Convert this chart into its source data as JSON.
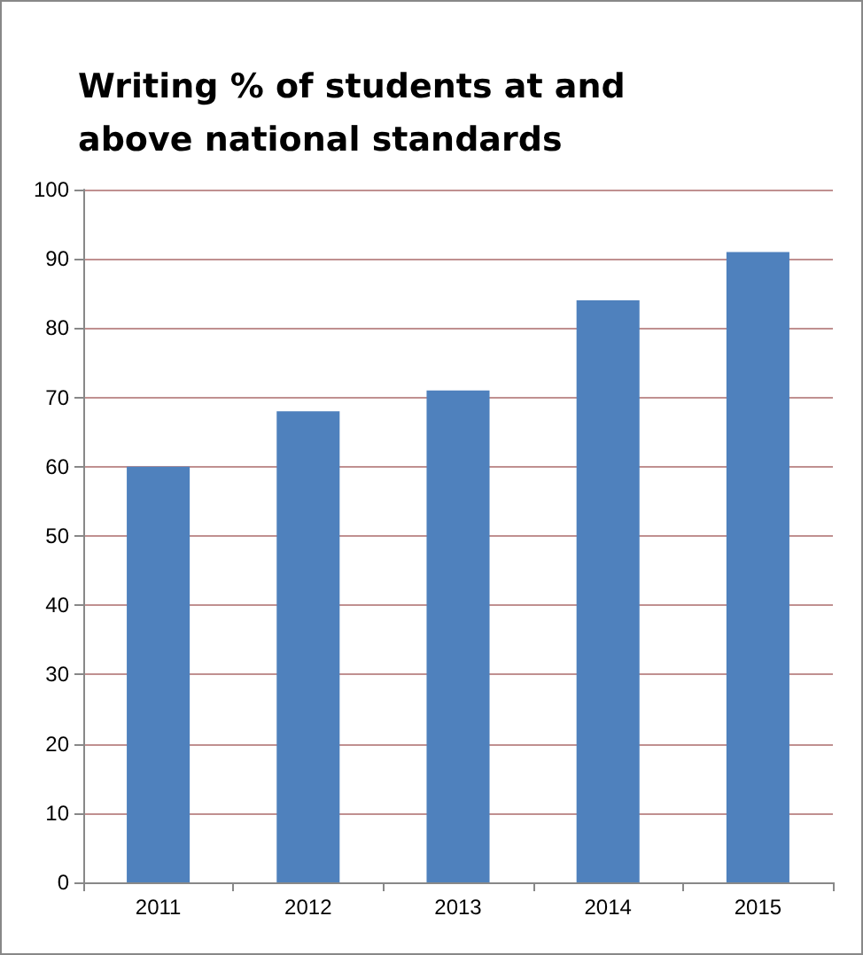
{
  "chart_data": {
    "type": "bar",
    "title": "Writing % of students at and above national standards",
    "categories": [
      "2011",
      "2012",
      "2013",
      "2014",
      "2015"
    ],
    "values": [
      60,
      68,
      71,
      84,
      91
    ],
    "color": "#4f81bd",
    "ylim": [
      0,
      100
    ],
    "yticks": [
      0,
      10,
      20,
      30,
      40,
      50,
      60,
      70,
      80,
      90,
      100
    ],
    "grid": "y"
  }
}
